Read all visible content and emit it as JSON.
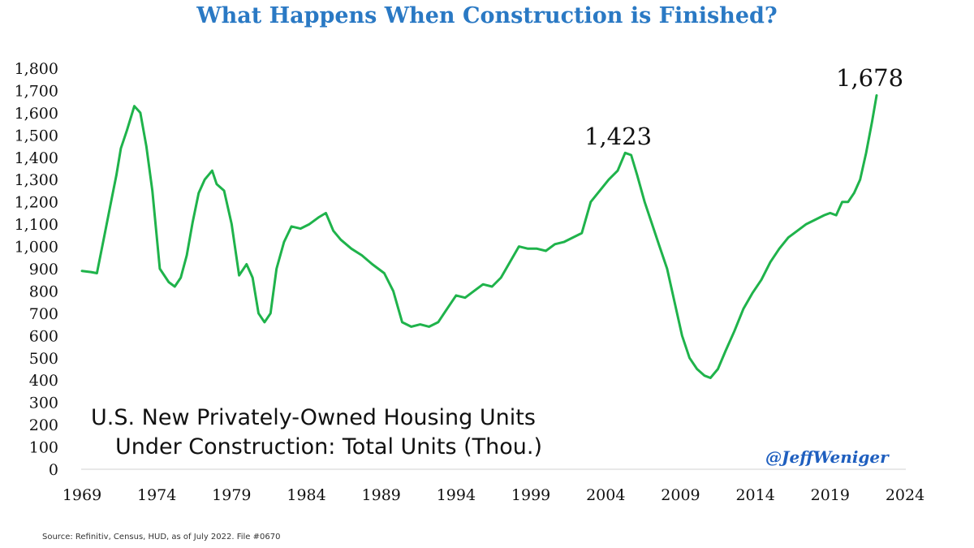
{
  "title": "What Happens When Construction is Finished?",
  "colors": {
    "title": "#2a79c4",
    "line": "#1fb34b",
    "handle": "#1f5fbf"
  },
  "annotations": {
    "peak_2006": "1,423",
    "latest": "1,678",
    "description_line1": "U.S. New Privately-Owned Housing Units",
    "description_line2": "Under Construction: Total Units (Thou.)",
    "handle": "@JeffWeniger",
    "source": "Source: Refinitiv, Census, HUD, as of July 2022. File #0670"
  },
  "chart_data": {
    "type": "line",
    "title": "What Happens When Construction is Finished?",
    "ylabel": "",
    "xlabel": "",
    "ylim": [
      0,
      1800
    ],
    "xlim": [
      1969,
      2024
    ],
    "grid": false,
    "x_ticks": [
      1969,
      1974,
      1979,
      1984,
      1989,
      1994,
      1999,
      2004,
      2009,
      2014,
      2019,
      2024
    ],
    "x_tick_labels": [
      "1969",
      "1974",
      "1979",
      "1984",
      "1989",
      "1994",
      "1999",
      "2004",
      "2009",
      "2014",
      "2019",
      "2024"
    ],
    "y_ticks": [
      0,
      100,
      200,
      300,
      400,
      500,
      600,
      700,
      800,
      900,
      1000,
      1100,
      1200,
      1300,
      1400,
      1500,
      1600,
      1700,
      1800
    ],
    "y_tick_labels": [
      "0",
      "100",
      "200",
      "300",
      "400",
      "500",
      "600",
      "700",
      "800",
      "900",
      "1,000",
      "1,100",
      "1,200",
      "1,300",
      "1,400",
      "1,500",
      "1,600",
      "1,700",
      "1,800"
    ],
    "series": [
      {
        "x": [
          1969.0,
          1969.6,
          1970.0,
          1970.5,
          1971.0,
          1971.3,
          1971.6,
          1972.0,
          1972.5,
          1972.9,
          1973.3,
          1973.7,
          1974.2,
          1974.8,
          1975.2,
          1975.6,
          1976.0,
          1976.4,
          1976.8,
          1977.2,
          1977.7,
          1978.0,
          1978.5,
          1979.0,
          1979.5,
          1980.0,
          1980.4,
          1980.8,
          1981.2,
          1981.6,
          1982.0,
          1982.5,
          1983.0,
          1983.6,
          1984.2,
          1984.8,
          1985.3,
          1985.8,
          1986.3,
          1987.0,
          1987.7,
          1988.4,
          1989.2,
          1989.8,
          1990.4,
          1991.0,
          1991.6,
          1992.2,
          1992.8,
          1993.4,
          1994.0,
          1994.6,
          1995.2,
          1995.8,
          1996.4,
          1997.0,
          1997.6,
          1998.2,
          1998.8,
          1999.4,
          2000.0,
          2000.6,
          2001.2,
          2001.8,
          2002.4,
          2003.0,
          2003.6,
          2004.2,
          2004.8,
          2005.3,
          2005.7,
          2006.1,
          2006.6,
          2007.1,
          2007.6,
          2008.1,
          2008.6,
          2009.1,
          2009.6,
          2010.1,
          2010.6,
          2011.0,
          2011.5,
          2012.0,
          2012.6,
          2013.2,
          2013.8,
          2014.4,
          2015.0,
          2015.6,
          2016.2,
          2016.8,
          2017.4,
          2018.0,
          2018.6,
          2019.0,
          2019.4,
          2019.8,
          2020.2,
          2020.6,
          2021.0,
          2021.4,
          2021.8,
          2022.1
        ],
        "values": [
          890,
          885,
          880,
          1050,
          1220,
          1320,
          1440,
          1520,
          1630,
          1600,
          1450,
          1250,
          900,
          840,
          820,
          860,
          960,
          1110,
          1240,
          1300,
          1340,
          1280,
          1250,
          1100,
          870,
          920,
          860,
          700,
          660,
          700,
          900,
          1020,
          1090,
          1080,
          1100,
          1130,
          1150,
          1070,
          1030,
          990,
          960,
          920,
          880,
          800,
          660,
          640,
          650,
          640,
          660,
          720,
          780,
          770,
          800,
          830,
          820,
          860,
          930,
          1000,
          990,
          990,
          980,
          1010,
          1020,
          1040,
          1060,
          1200,
          1250,
          1300,
          1340,
          1420,
          1410,
          1320,
          1200,
          1100,
          1000,
          900,
          750,
          600,
          500,
          450,
          420,
          410,
          450,
          530,
          620,
          720,
          790,
          850,
          930,
          990,
          1040,
          1070,
          1100,
          1120,
          1140,
          1150,
          1140,
          1200,
          1200,
          1240,
          1300,
          1420,
          1560,
          1678
        ]
      }
    ]
  }
}
